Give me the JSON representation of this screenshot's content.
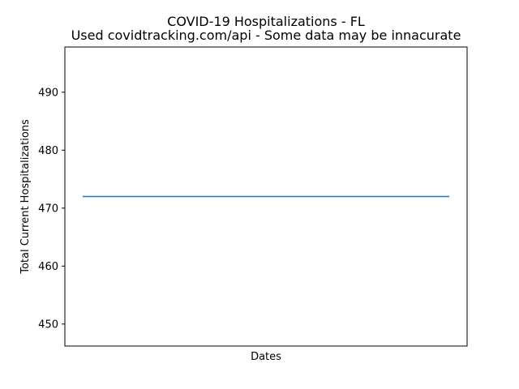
{
  "chart_data": {
    "type": "line",
    "title": "COVID-19 Hospitalizations - FL",
    "subtitle": "Used covidtracking.com/api - Some data may be innacurate",
    "xlabel": "Dates",
    "ylabel": "Total Current Hospitalizations",
    "x_tick_labels": [],
    "y_ticks": [
      450,
      460,
      470,
      480,
      490
    ],
    "ylim": [
      446.2,
      497.8
    ],
    "grid": false,
    "legend": null,
    "series": [
      {
        "name": "Total Current Hospitalizations",
        "color": "#1f77b4",
        "values": [
          472,
          472
        ]
      }
    ]
  }
}
